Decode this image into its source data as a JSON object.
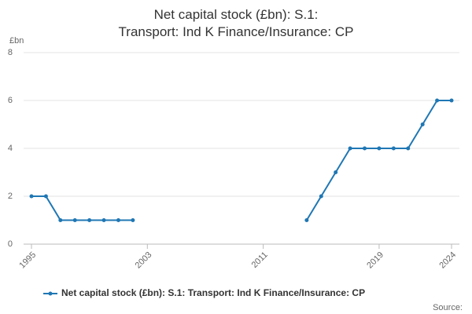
{
  "chart_data": {
    "type": "line",
    "title": "Net capital stock (£bn): S.1: Transport: Ind K Finance/Insurance: CP",
    "y_label": "£bn",
    "source": "Source:",
    "x": [
      1995,
      1996,
      1997,
      1998,
      1999,
      2000,
      2001,
      2002,
      2003,
      2004,
      2005,
      2006,
      2007,
      2008,
      2009,
      2010,
      2011,
      2012,
      2013,
      2014,
      2015,
      2016,
      2017,
      2018,
      2019,
      2020,
      2021,
      2022,
      2023,
      2024
    ],
    "series": [
      {
        "name": "Net capital stock (£bn): S.1: Transport: Ind K Finance/Insurance: CP",
        "color": "#1f77b4",
        "values": [
          2,
          2,
          1,
          1,
          1,
          1,
          1,
          1,
          null,
          null,
          null,
          null,
          null,
          null,
          null,
          null,
          null,
          null,
          null,
          1,
          2,
          3,
          4,
          4,
          4,
          4,
          4,
          5,
          6,
          6
        ]
      }
    ],
    "xlim": [
      1995,
      2024
    ],
    "xticks": [
      1995,
      2003,
      2011,
      2019,
      2024
    ],
    "ylim": [
      0,
      8
    ],
    "yticks": [
      0,
      2,
      4,
      6,
      8
    ],
    "grid": true
  }
}
